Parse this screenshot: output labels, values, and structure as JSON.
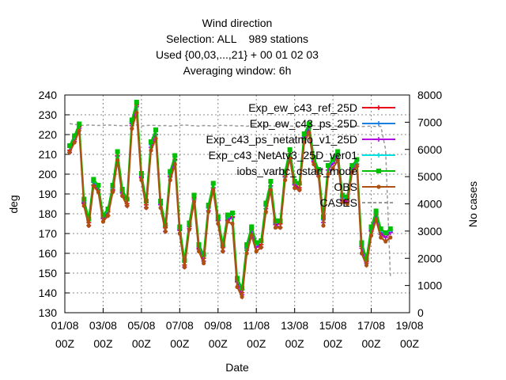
{
  "chart_data": {
    "type": "line",
    "title_lines": [
      "Wind direction",
      "Selection: ALL    989 stations",
      "Used {00,03,...,21} + 00 01 02 03",
      "Averaging window:  6h"
    ],
    "xlabel": "Date",
    "ylabel": "deg",
    "y2label": "No cases",
    "x_range_days": [
      0,
      18
    ],
    "ylim": [
      130,
      240
    ],
    "y2lim": [
      0,
      8000
    ],
    "x_ticks": [
      {
        "day": 0,
        "line1": "01/08",
        "line2": "00Z"
      },
      {
        "day": 2,
        "line1": "03/08",
        "line2": "00Z"
      },
      {
        "day": 4,
        "line1": "05/08",
        "line2": "00Z"
      },
      {
        "day": 6,
        "line1": "07/08",
        "line2": "00Z"
      },
      {
        "day": 8,
        "line1": "09/08",
        "line2": "00Z"
      },
      {
        "day": 10,
        "line1": "11/08",
        "line2": "00Z"
      },
      {
        "day": 12,
        "line1": "13/08",
        "line2": "00Z"
      },
      {
        "day": 14,
        "line1": "15/08",
        "line2": "00Z"
      },
      {
        "day": 16,
        "line1": "17/08",
        "line2": "00Z"
      },
      {
        "day": 18,
        "line1": "19/08",
        "line2": "00Z"
      }
    ],
    "y_ticks": [
      130,
      140,
      150,
      160,
      170,
      180,
      190,
      200,
      210,
      220,
      230,
      240
    ],
    "y2_ticks": [
      0,
      1000,
      2000,
      3000,
      4000,
      5000,
      6000,
      7000,
      8000
    ],
    "grid": true,
    "legend_position": "top-right",
    "x_step_days": 0.25,
    "series": [
      {
        "name": "Exp_ew_c43_ref_25D",
        "color": "#e8001a",
        "marker": "plus"
      },
      {
        "name": "Exp_ew_c43_ps_25D",
        "color": "#1a80e0",
        "marker": "plus"
      },
      {
        "name": "Exp_c43_ps_netatmo_v1_25D",
        "color": "#b000e0",
        "marker": "plus"
      },
      {
        "name": "Exp_c43_NetAtv3_25D_ver01",
        "color": "#00e0e0",
        "marker": "plus"
      },
      {
        "name": "iobs_varbc_cstart_mode",
        "color": "#00c000",
        "marker": "square"
      },
      {
        "name": "OBS",
        "color": "#b05010",
        "marker": "circle"
      },
      {
        "name": "CASES",
        "color": "#999999",
        "marker": "none",
        "axis": "y2",
        "dashed": true
      }
    ],
    "base_values": [
      213,
      218,
      224,
      186,
      176,
      196,
      193,
      178,
      181,
      193,
      210,
      191,
      186,
      226,
      235,
      199,
      185,
      215,
      221,
      185,
      173,
      200,
      208,
      172,
      155,
      174,
      188,
      163,
      158,
      183,
      194,
      177,
      163,
      178,
      179,
      146,
      141,
      163,
      172,
      164,
      165,
      184,
      195,
      175,
      175,
      200,
      211,
      195,
      194,
      219,
      224,
      207,
      201,
      177,
      203,
      206,
      210,
      188,
      187,
      203,
      206,
      164,
      156,
      172,
      180,
      171,
      169,
      171
    ],
    "obs_values": [
      211,
      216,
      222,
      184,
      174,
      194,
      191,
      176,
      179,
      191,
      207,
      189,
      184,
      223,
      231,
      197,
      183,
      212,
      218,
      183,
      171,
      197,
      205,
      170,
      153,
      172,
      186,
      161,
      155,
      181,
      192,
      175,
      161,
      176,
      175,
      143,
      138,
      160,
      169,
      161,
      163,
      181,
      192,
      173,
      173,
      197,
      208,
      193,
      192,
      216,
      221,
      205,
      199,
      174,
      200,
      203,
      207,
      186,
      185,
      201,
      204,
      160,
      154,
      169,
      177,
      168,
      166,
      168
    ],
    "cases_values": [
      6950,
      6920,
      6900,
      6880,
      6900,
      6890,
      6880,
      6890,
      6900,
      6890,
      6880,
      6870,
      6880,
      6890,
      6900,
      6860,
      6880,
      6890,
      6880,
      6870,
      6880,
      6860,
      6870,
      6880,
      6900,
      6880,
      6870,
      6860,
      6880,
      6870,
      6860,
      6880,
      6890,
      6870,
      6880,
      6860,
      6870,
      6850,
      6880,
      6870,
      6860,
      6880,
      6870,
      6860,
      6880,
      6870,
      6860,
      6850,
      6870,
      6860,
      6880,
      6870,
      6860,
      6850,
      6860,
      6870,
      6850,
      6860,
      6870,
      6850,
      6860,
      6840,
      6850,
      6860,
      6840,
      6850,
      6000,
      1300
    ]
  }
}
